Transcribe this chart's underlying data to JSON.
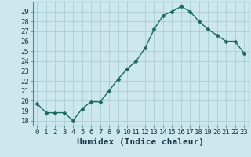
{
  "title": "",
  "xlabel": "Humidex (Indice chaleur)",
  "ylabel": "",
  "x_values": [
    0,
    1,
    2,
    3,
    4,
    5,
    6,
    7,
    8,
    9,
    10,
    11,
    12,
    13,
    14,
    15,
    16,
    17,
    18,
    19,
    20,
    21,
    22,
    23
  ],
  "y_values": [
    19.7,
    18.8,
    18.8,
    18.8,
    18.0,
    19.2,
    19.9,
    19.9,
    21.0,
    22.2,
    23.2,
    24.0,
    25.3,
    27.2,
    28.6,
    29.0,
    29.5,
    29.0,
    28.0,
    27.2,
    26.6,
    26.0,
    26.0,
    24.8
  ],
  "line_color": "#1a6b5a",
  "marker": "D",
  "marker_size": 2.5,
  "bg_color": "#cce8ee",
  "grid_color": "#aacdd6",
  "ylim": [
    17.5,
    30.0
  ],
  "xlim": [
    -0.5,
    23.5
  ],
  "yticks": [
    18,
    19,
    20,
    21,
    22,
    23,
    24,
    25,
    26,
    27,
    28,
    29
  ],
  "xticks": [
    0,
    1,
    2,
    3,
    4,
    5,
    6,
    7,
    8,
    9,
    10,
    11,
    12,
    13,
    14,
    15,
    16,
    17,
    18,
    19,
    20,
    21,
    22,
    23
  ],
  "tick_label_fontsize": 6.5,
  "xlabel_fontsize": 8,
  "line_width": 1.0,
  "spine_color": "#4a8a9a"
}
